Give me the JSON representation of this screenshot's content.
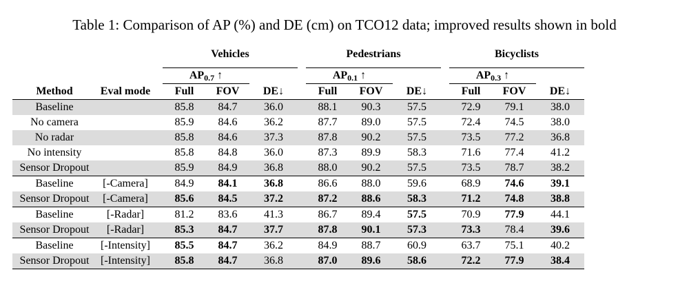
{
  "caption": "Table 1: Comparison of AP (%) and DE (cm) on TCO12 data; improved results shown in bold",
  "groups": {
    "vehicles": {
      "label": "Vehicles",
      "ap_base": "AP",
      "ap_sub": "0.7",
      "ap_arrow": "↑"
    },
    "pedestrians": {
      "label": "Pedestrians",
      "ap_base": "AP",
      "ap_sub": "0.1",
      "ap_arrow": "↑"
    },
    "bicyclists": {
      "label": "Bicyclists",
      "ap_base": "AP",
      "ap_sub": "0.3",
      "ap_arrow": "↑"
    }
  },
  "columns": {
    "method": "Method",
    "eval_mode": "Eval mode",
    "full": "Full",
    "fov": "FOV",
    "de": "DE↓"
  },
  "rows": [
    {
      "method": "Baseline",
      "eval": "",
      "v": [
        "85.8",
        "84.7",
        "36.0"
      ],
      "p": [
        "88.1",
        "90.3",
        "57.5"
      ],
      "b": [
        "72.9",
        "79.1",
        "38.0"
      ]
    },
    {
      "method": "No camera",
      "eval": "",
      "v": [
        "85.9",
        "84.6",
        "36.2"
      ],
      "p": [
        "87.7",
        "89.0",
        "57.5"
      ],
      "b": [
        "72.4",
        "74.5",
        "38.0"
      ]
    },
    {
      "method": "No radar",
      "eval": "",
      "v": [
        "85.8",
        "84.6",
        "37.3"
      ],
      "p": [
        "87.8",
        "90.2",
        "57.5"
      ],
      "b": [
        "73.5",
        "77.2",
        "36.8"
      ]
    },
    {
      "method": "No intensity",
      "eval": "",
      "v": [
        "85.8",
        "84.8",
        "36.0"
      ],
      "p": [
        "87.3",
        "89.9",
        "58.3"
      ],
      "b": [
        "71.6",
        "77.4",
        "41.2"
      ]
    },
    {
      "method": "Sensor Dropout",
      "eval": "",
      "v": [
        "85.9",
        "84.9",
        "36.8"
      ],
      "p": [
        "88.0",
        "90.2",
        "57.5"
      ],
      "b": [
        "73.5",
        "78.7",
        "38.2"
      ]
    },
    {
      "method": "Baseline",
      "eval": "[-Camera]",
      "v": [
        "84.9",
        "84.1",
        "36.8"
      ],
      "p": [
        "86.6",
        "88.0",
        "59.6"
      ],
      "b": [
        "68.9",
        "74.6",
        "39.1"
      ]
    },
    {
      "method": "Sensor Dropout",
      "eval": "[-Camera]",
      "v": [
        "85.6",
        "84.5",
        "37.2"
      ],
      "p": [
        "87.2",
        "88.6",
        "58.3"
      ],
      "b": [
        "71.2",
        "74.8",
        "38.8"
      ]
    },
    {
      "method": "Baseline",
      "eval": "[-Radar]",
      "v": [
        "81.2",
        "83.6",
        "41.3"
      ],
      "p": [
        "86.7",
        "89.4",
        "57.5"
      ],
      "b": [
        "70.9",
        "77.9",
        "44.1"
      ]
    },
    {
      "method": "Sensor Dropout",
      "eval": "[-Radar]",
      "v": [
        "85.3",
        "84.7",
        "37.7"
      ],
      "p": [
        "87.8",
        "90.1",
        "57.3"
      ],
      "b": [
        "73.3",
        "78.4",
        "39.6"
      ]
    },
    {
      "method": "Baseline",
      "eval": "[-Intensity]",
      "v": [
        "85.5",
        "84.7",
        "36.2"
      ],
      "p": [
        "84.9",
        "88.7",
        "60.9"
      ],
      "b": [
        "63.7",
        "75.1",
        "40.2"
      ]
    },
    {
      "method": "Sensor Dropout",
      "eval": "[-Intensity]",
      "v": [
        "85.8",
        "84.7",
        "36.8"
      ],
      "p": [
        "87.0",
        "89.6",
        "58.6"
      ],
      "b": [
        "72.2",
        "77.9",
        "38.4"
      ]
    }
  ]
}
